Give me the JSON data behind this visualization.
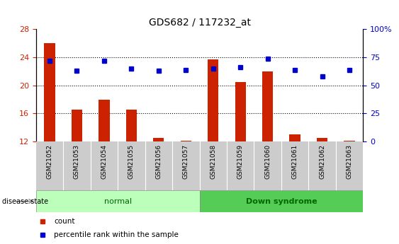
{
  "title": "GDS682 / 117232_at",
  "samples": [
    "GSM21052",
    "GSM21053",
    "GSM21054",
    "GSM21055",
    "GSM21056",
    "GSM21057",
    "GSM21058",
    "GSM21059",
    "GSM21060",
    "GSM21061",
    "GSM21062",
    "GSM21063"
  ],
  "count_values": [
    26.0,
    16.5,
    18.0,
    16.5,
    12.5,
    12.1,
    23.7,
    20.5,
    22.0,
    13.0,
    12.5,
    12.1
  ],
  "percentile_values": [
    72,
    63,
    72,
    65,
    63,
    64,
    65,
    66,
    74,
    64,
    58,
    64
  ],
  "ylim_left": [
    12,
    28
  ],
  "ylim_right": [
    0,
    100
  ],
  "yticks_left": [
    12,
    16,
    20,
    24,
    28
  ],
  "yticks_right": [
    0,
    25,
    50,
    75,
    100
  ],
  "ytick_labels_right": [
    "0",
    "25",
    "50",
    "75",
    "100%"
  ],
  "bar_color": "#cc2200",
  "marker_color": "#0000cc",
  "normal_label": "normal",
  "downsyndrome_label": "Down syndrome",
  "normal_color": "#bbffbb",
  "downsyndrome_color": "#55cc55",
  "group_label_color": "#006600",
  "disease_state_label": "disease state",
  "legend_count_label": "count",
  "legend_percentile_label": "percentile rank within the sample",
  "background_color": "#ffffff",
  "tick_label_color_left": "#cc2200",
  "tick_label_color_right": "#0000cc",
  "xticklabel_bg_color": "#cccccc",
  "gridline_color": "#000000"
}
